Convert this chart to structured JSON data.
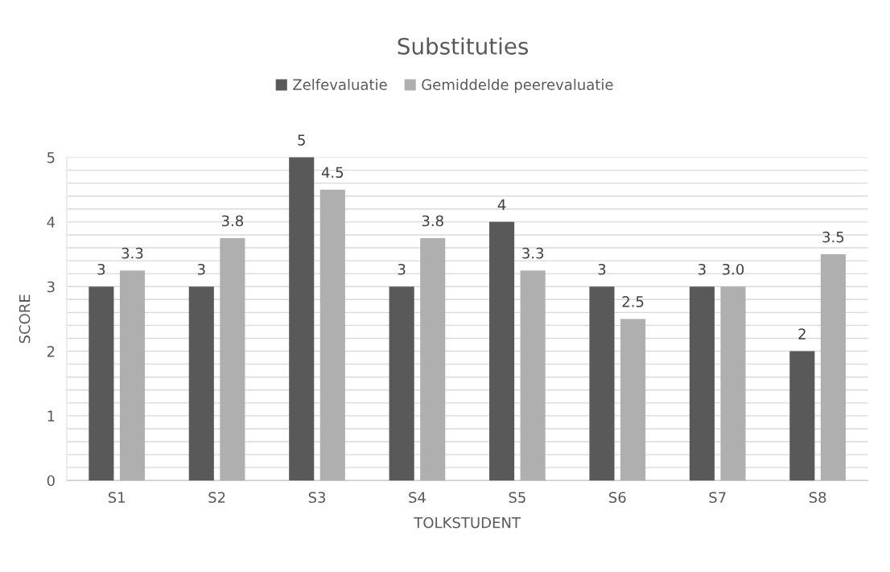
{
  "chart_data": {
    "type": "bar",
    "title": "Substituties",
    "xlabel": "TOLKSTUDENT",
    "ylabel": "SCORE",
    "categories": [
      "S1",
      "S2",
      "S3",
      "S4",
      "S5",
      "S6",
      "S7",
      "S8"
    ],
    "series": [
      {
        "name": "Zelfevaluatie",
        "color": "#595959",
        "values": [
          3,
          3,
          5,
          3,
          4,
          3,
          3,
          2
        ],
        "value_labels": [
          "3",
          "3",
          "5",
          "3",
          "4",
          "3",
          "3",
          "2"
        ]
      },
      {
        "name": "Gemiddelde peerevaluatie",
        "color": "#afafaf",
        "values": [
          3.25,
          3.75,
          4.5,
          3.75,
          3.25,
          2.5,
          3.0,
          3.5
        ],
        "value_labels": [
          "3.3",
          "3.8",
          "4.5",
          "3.8",
          "3.3",
          "2.5",
          "3.0",
          "3.5"
        ]
      }
    ],
    "ylim": [
      0,
      5
    ],
    "yticks": [
      0,
      {
        "value": 0.2,
        "label": null
      },
      {
        "value": 0.4,
        "label": null
      },
      {
        "value": 0.6,
        "label": null
      },
      {
        "value": 0.8,
        "label": null
      },
      1,
      {
        "value": 1.2,
        "label": null
      },
      {
        "value": 1.4,
        "label": null
      },
      {
        "value": 1.6,
        "label": null
      },
      {
        "value": 1.8,
        "label": null
      },
      2,
      {
        "value": 2.2,
        "label": null
      },
      {
        "value": 2.4,
        "label": null
      },
      {
        "value": 2.6,
        "label": null
      },
      {
        "value": 2.8,
        "label": null
      },
      3,
      {
        "value": 3.2,
        "label": null
      },
      {
        "value": 3.4,
        "label": null
      },
      {
        "value": 3.6,
        "label": null
      },
      {
        "value": 3.8,
        "label": null
      },
      4,
      {
        "value": 4.2,
        "label": null
      },
      {
        "value": 4.4,
        "label": null
      },
      {
        "value": 4.6,
        "label": null
      },
      {
        "value": 4.8,
        "label": null
      },
      5
    ],
    "grid": "y",
    "legend": "top"
  }
}
